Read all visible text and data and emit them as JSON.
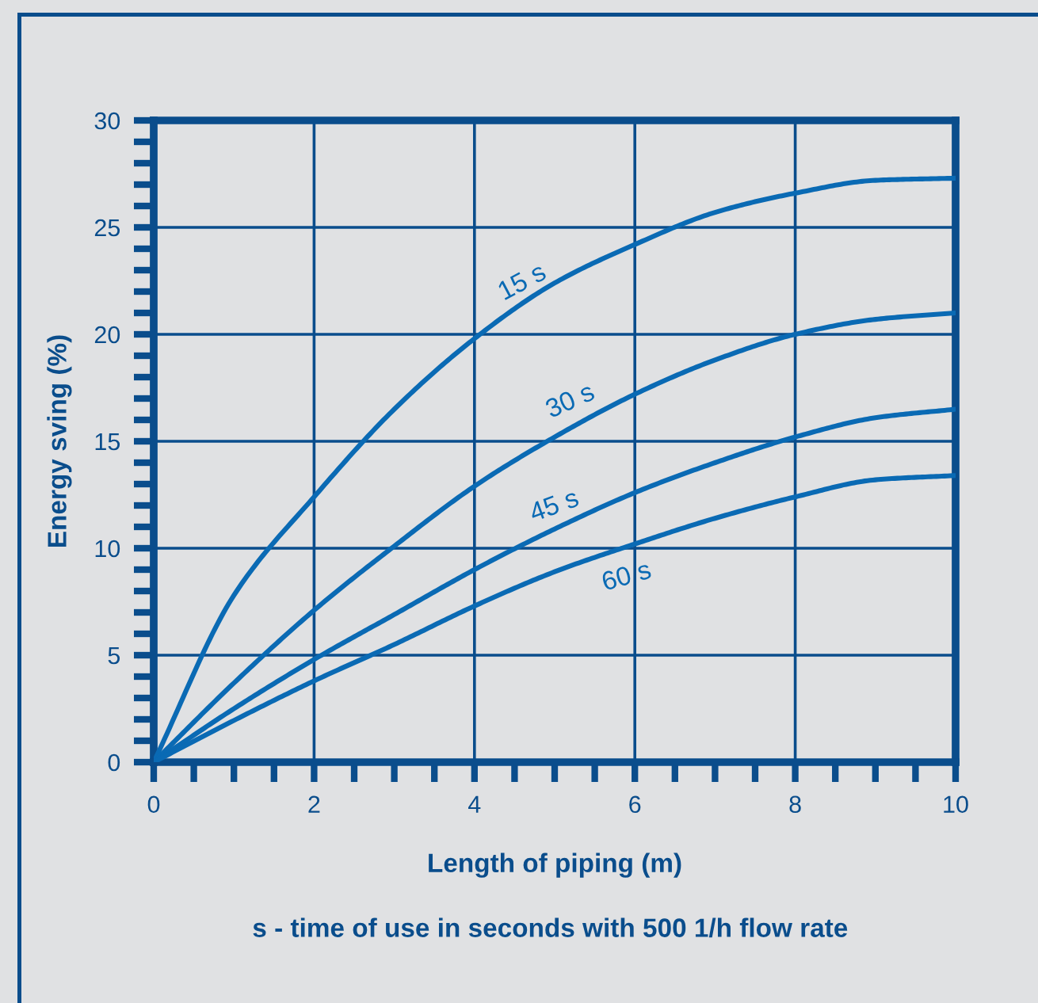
{
  "chart_data": {
    "type": "line",
    "xlabel": "Length of piping (m)",
    "ylabel": "Energy sving (%)",
    "annotations": [
      "s - time of use in seconds with 500 1/h flow rate"
    ],
    "x": [
      0,
      1,
      2,
      3,
      4,
      5,
      6,
      7,
      8,
      9,
      10
    ],
    "series": [
      {
        "name": "15 s",
        "color": "#0a6ab4",
        "values": [
          0,
          7.8,
          12.4,
          16.5,
          19.8,
          22.4,
          24.2,
          25.7,
          26.6,
          27.2,
          27.3
        ]
      },
      {
        "name": "30 s",
        "color": "#0a6ab4",
        "values": [
          0,
          3.7,
          7.1,
          10.1,
          12.9,
          15.2,
          17.2,
          18.8,
          20.0,
          20.7,
          21.0
        ]
      },
      {
        "name": "45 s",
        "color": "#0a6ab4",
        "values": [
          0,
          2.5,
          4.8,
          6.9,
          9.0,
          10.9,
          12.6,
          14.0,
          15.2,
          16.1,
          16.5
        ]
      },
      {
        "name": "60 s",
        "color": "#0a6ab4",
        "values": [
          0,
          1.95,
          3.8,
          5.5,
          7.3,
          8.9,
          10.2,
          11.4,
          12.4,
          13.2,
          13.4
        ]
      }
    ],
    "xlim": [
      0,
      10
    ],
    "ylim": [
      0,
      30
    ],
    "xticks": [
      0,
      {
        "value": 0.5,
        "label": null
      },
      {
        "value": 1,
        "label": null
      },
      {
        "value": 1.5,
        "label": null
      },
      2,
      {
        "value": 2.5,
        "label": null
      },
      {
        "value": 3,
        "label": null
      },
      {
        "value": 3.5,
        "label": null
      },
      4,
      {
        "value": 4.5,
        "label": null
      },
      {
        "value": 5,
        "label": null
      },
      {
        "value": 5.5,
        "label": null
      },
      6,
      {
        "value": 6.5,
        "label": null
      },
      {
        "value": 7,
        "label": null
      },
      {
        "value": 7.5,
        "label": null
      },
      8,
      {
        "value": 8.5,
        "label": null
      },
      {
        "value": 9,
        "label": null
      },
      {
        "value": 9.5,
        "label": null
      },
      10
    ],
    "yticks": [
      0,
      {
        "value": 1,
        "label": null
      },
      {
        "value": 2,
        "label": null
      },
      {
        "value": 3,
        "label": null
      },
      {
        "value": 4,
        "label": null
      },
      5,
      {
        "value": 6,
        "label": null
      },
      {
        "value": 7,
        "label": null
      },
      {
        "value": 8,
        "label": null
      },
      {
        "value": 9,
        "label": null
      },
      10,
      {
        "value": 11,
        "label": null
      },
      {
        "value": 12,
        "label": null
      },
      {
        "value": 13,
        "label": null
      },
      {
        "value": 14,
        "label": null
      },
      15,
      {
        "value": 16,
        "label": null
      },
      {
        "value": 17,
        "label": null
      },
      {
        "value": 18,
        "label": null
      },
      {
        "value": 19,
        "label": null
      },
      20,
      {
        "value": 21,
        "label": null
      },
      {
        "value": 22,
        "label": null
      },
      {
        "value": 23,
        "label": null
      },
      {
        "value": 24,
        "label": null
      },
      25,
      {
        "value": 26,
        "label": null
      },
      {
        "value": 27,
        "label": null
      },
      {
        "value": 28,
        "label": null
      },
      {
        "value": 29,
        "label": null
      },
      30
    ],
    "grid": true,
    "marker": "none",
    "line_style": "solid",
    "legend": false
  }
}
